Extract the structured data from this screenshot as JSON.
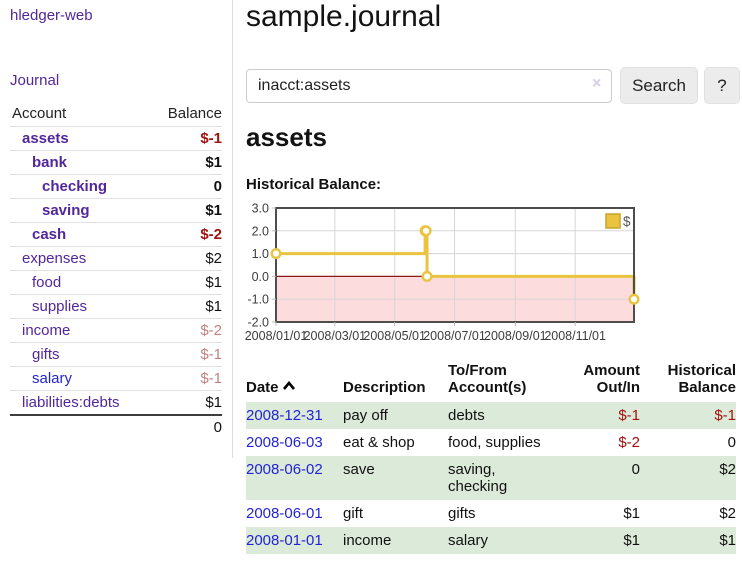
{
  "colors": {
    "link_purple": "#52279B",
    "link_blue": "#2323D6",
    "negative_strong": "#A01310",
    "negative_muted": "#C08280",
    "row_shade_green": "#DCEAD9",
    "chart_line_gold": "#EAC33F",
    "chart_negative_region": "#FCDCDC",
    "chart_zero_line": "#8C1717"
  },
  "sidebar": {
    "app_title": "hledger-web",
    "journal_link": "Journal",
    "header": {
      "account": "Account",
      "balance": "Balance"
    },
    "accounts": [
      {
        "name": "assets",
        "balance": "$-1",
        "level": 1,
        "bold": true,
        "balance_color": "negative"
      },
      {
        "name": "bank",
        "balance": "$1",
        "level": 2,
        "bold": true,
        "balance_color": "normal"
      },
      {
        "name": "checking",
        "balance": "0",
        "level": 3,
        "bold": true,
        "balance_color": "normal"
      },
      {
        "name": "saving",
        "balance": "$1",
        "level": 3,
        "bold": true,
        "balance_color": "normal"
      },
      {
        "name": "cash",
        "balance": "$-2",
        "level": 2,
        "bold": true,
        "balance_color": "negative"
      },
      {
        "name": "expenses",
        "balance": "$2",
        "level": 1,
        "bold": false,
        "balance_color": "normal"
      },
      {
        "name": "food",
        "balance": "$1",
        "level": 2,
        "bold": false,
        "balance_color": "normal"
      },
      {
        "name": "supplies",
        "balance": "$1",
        "level": 2,
        "bold": false,
        "balance_color": "normal"
      },
      {
        "name": "income",
        "balance": "$-2",
        "level": 1,
        "bold": false,
        "balance_color": "negative-muted"
      },
      {
        "name": "gifts",
        "balance": "$-1",
        "level": 2,
        "bold": false,
        "balance_color": "negative-muted"
      },
      {
        "name": "salary",
        "balance": "$-1",
        "level": 2,
        "bold": false,
        "balance_color": "negative-muted",
        "link_color": "blue"
      },
      {
        "name": "liabilities:debts",
        "balance": "$1",
        "level": 1,
        "bold": false,
        "balance_color": "normal"
      }
    ],
    "total": "0"
  },
  "main": {
    "title": "sample.journal",
    "search": {
      "value": "inacct:assets",
      "clear_icon": "×",
      "button_label": "Search",
      "help_label": "?"
    },
    "account_heading": "assets",
    "chart_label": "Historical Balance:"
  },
  "chart_data": {
    "type": "line",
    "style": "step",
    "marker": "open-circle",
    "legend": [
      {
        "label": "$",
        "color": "#EAC33F"
      }
    ],
    "legend_position": "top-right",
    "ylim": [
      -2,
      3
    ],
    "y_ticks": [
      {
        "label": "3.0",
        "value": 3
      },
      {
        "label": "2.0",
        "value": 2
      },
      {
        "label": "1.0",
        "value": 1
      },
      {
        "label": "0.0",
        "value": 0
      },
      {
        "label": "-1.0",
        "value": -1
      },
      {
        "label": "-2.0",
        "value": -2
      }
    ],
    "x_start": "2008/01/01",
    "x_end": "2008/12/31",
    "x_ticks": [
      "2008/01/01",
      "2008/03/01",
      "2008/05/01",
      "2008/07/01",
      "2008/09/01",
      "2008/11/01"
    ],
    "series": [
      {
        "name": "$",
        "points": [
          [
            "2008/01/01",
            1
          ],
          [
            "2008/06/01",
            2
          ],
          [
            "2008/06/02",
            2
          ],
          [
            "2008/06/03",
            0
          ],
          [
            "2008/12/31",
            -1
          ]
        ]
      }
    ],
    "grid": true,
    "negative_region_color": "#FCDCDC",
    "zero_line_color": "#8C1717",
    "line_color": "#EAC33F"
  },
  "register": {
    "headers": [
      "Date",
      "Description",
      "To/From\nAccount(s)",
      "Amount\nOut/In",
      "Historical\nBalance"
    ],
    "sort_icon": "chevron-up",
    "rows": [
      {
        "date": "2008-12-31",
        "description": "pay off",
        "accounts": "debts",
        "amount": "$-1",
        "amount_negative": true,
        "balance": "$-1",
        "balance_negative": true,
        "shaded": true
      },
      {
        "date": "2008-06-03",
        "description": "eat & shop",
        "accounts": "food, supplies",
        "amount": "$-2",
        "amount_negative": true,
        "balance": "0",
        "balance_negative": false,
        "shaded": false
      },
      {
        "date": "2008-06-02",
        "description": "save",
        "accounts": "saving, checking",
        "amount": "0",
        "amount_negative": false,
        "balance": "$2",
        "balance_negative": false,
        "shaded": true
      },
      {
        "date": "2008-06-01",
        "description": "gift",
        "accounts": "gifts",
        "amount": "$1",
        "amount_negative": false,
        "balance": "$2",
        "balance_negative": false,
        "shaded": false
      },
      {
        "date": "2008-01-01",
        "description": "income",
        "accounts": "salary",
        "amount": "$1",
        "amount_negative": false,
        "balance": "$1",
        "balance_negative": false,
        "shaded": true
      }
    ]
  }
}
